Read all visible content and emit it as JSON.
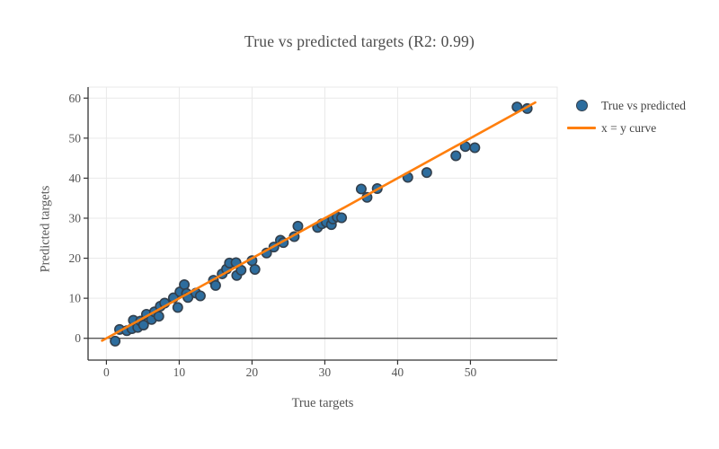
{
  "chart_data": {
    "type": "scatter",
    "title": "True vs predicted targets (R2: 0.99)",
    "xlabel": "True targets",
    "ylabel": "Predicted targets",
    "xlim": [
      -2.52,
      61.92
    ],
    "ylim": [
      -5.45,
      62.75
    ],
    "x_ticks": [
      0,
      10,
      20,
      30,
      40,
      50
    ],
    "y_ticks": [
      0,
      10,
      20,
      30,
      40,
      50,
      60
    ],
    "grid": true,
    "zeroline_y": 0,
    "legend_position": "right",
    "series": [
      {
        "name": "True vs predicted",
        "type": "scatter",
        "marker_color": "#2d6d9e",
        "marker_edge_color": "#33404d",
        "points": [
          [
            1.2,
            -0.7
          ],
          [
            1.8,
            2.2
          ],
          [
            2.8,
            1.9
          ],
          [
            3.5,
            2.4
          ],
          [
            3.7,
            4.5
          ],
          [
            4.3,
            2.7
          ],
          [
            4.7,
            4.3
          ],
          [
            5.1,
            3.3
          ],
          [
            5.5,
            6.0
          ],
          [
            6.2,
            4.7
          ],
          [
            6.6,
            6.6
          ],
          [
            7.2,
            5.5
          ],
          [
            7.4,
            8.0
          ],
          [
            8.0,
            8.8
          ],
          [
            9.2,
            10.1
          ],
          [
            9.8,
            7.7
          ],
          [
            10.1,
            11.6
          ],
          [
            10.7,
            13.4
          ],
          [
            11.0,
            11.2
          ],
          [
            11.2,
            10.2
          ],
          [
            12.3,
            11.3
          ],
          [
            12.9,
            10.6
          ],
          [
            14.7,
            14.5
          ],
          [
            15.0,
            13.2
          ],
          [
            15.9,
            16.1
          ],
          [
            16.5,
            17.3
          ],
          [
            16.9,
            18.8
          ],
          [
            17.8,
            18.9
          ],
          [
            17.9,
            15.7
          ],
          [
            18.5,
            17.0
          ],
          [
            20.0,
            19.4
          ],
          [
            20.4,
            17.2
          ],
          [
            22.0,
            21.3
          ],
          [
            23.0,
            22.8
          ],
          [
            23.9,
            24.5
          ],
          [
            24.3,
            23.9
          ],
          [
            25.8,
            25.4
          ],
          [
            26.3,
            28.0
          ],
          [
            29.0,
            27.7
          ],
          [
            29.6,
            28.6
          ],
          [
            30.2,
            29.0
          ],
          [
            30.9,
            28.4
          ],
          [
            31.1,
            29.8
          ],
          [
            31.7,
            30.3
          ],
          [
            32.3,
            30.1
          ],
          [
            35.0,
            37.3
          ],
          [
            35.8,
            35.2
          ],
          [
            37.2,
            37.4
          ],
          [
            41.4,
            40.2
          ],
          [
            44.0,
            41.4
          ],
          [
            48.0,
            45.6
          ],
          [
            49.3,
            47.9
          ],
          [
            50.6,
            47.6
          ],
          [
            56.4,
            57.8
          ],
          [
            57.8,
            57.4
          ]
        ]
      },
      {
        "name": "x = y curve",
        "type": "line",
        "color": "#ff7f0e",
        "x": [
          -0.6,
          58.9
        ],
        "y": [
          -0.6,
          58.9
        ]
      }
    ]
  },
  "legend": {
    "entries": [
      {
        "label": "True vs predicted",
        "glyph": "dot-marker-icon",
        "color": "#2d6d9e",
        "edge": "#33404d"
      },
      {
        "label": "x = y curve",
        "glyph": "line-sample-icon",
        "color": "#ff7f0e"
      }
    ]
  },
  "colors": {
    "grid": "#e9e9e9",
    "axis_line": "#333333",
    "zero_line": "#565656",
    "tick_text": "#555555",
    "title_text": "#4c4c4c",
    "background": "#ffffff"
  }
}
